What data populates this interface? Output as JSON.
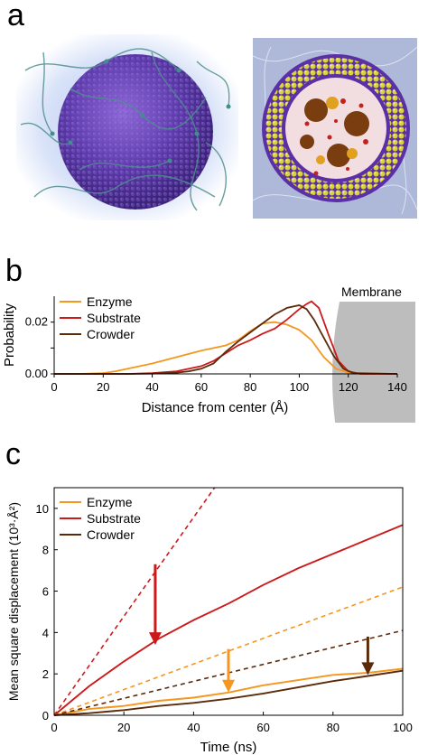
{
  "panels": {
    "a": {
      "letter": "a"
    },
    "b": {
      "letter": "b"
    },
    "c": {
      "letter": "c"
    }
  },
  "colors": {
    "enzyme": "#f5961e",
    "substrate": "#cc1a1a",
    "crowder": "#5a2a0a",
    "membrane": "#bdbdbd"
  },
  "chart_data": [
    {
      "id": "b",
      "type": "line",
      "xlabel": "Distance from center (Å)",
      "ylabel": "Probability",
      "xlim": [
        0,
        140
      ],
      "ylim": [
        0,
        0.03
      ],
      "xticks": [
        0,
        20,
        40,
        60,
        80,
        100,
        120,
        140
      ],
      "yticks": [
        0.0,
        0.01,
        0.02
      ],
      "ytick_labels": [
        "0.00",
        "",
        "0.02"
      ],
      "annotation": "Membrane",
      "legend": [
        "Enzyme",
        "Substrate",
        "Crowder"
      ],
      "legend_position": "top-left",
      "series": [
        {
          "name": "Enzyme",
          "color": "#f5961e",
          "x": [
            0,
            10,
            20,
            25,
            30,
            40,
            50,
            60,
            70,
            75,
            80,
            85,
            90,
            95,
            100,
            105,
            110,
            115,
            120,
            125,
            130,
            140
          ],
          "y": [
            0,
            0,
            0.0003,
            0.001,
            0.002,
            0.004,
            0.0065,
            0.009,
            0.011,
            0.013,
            0.0165,
            0.0195,
            0.02,
            0.019,
            0.017,
            0.013,
            0.0065,
            0.002,
            0.0005,
            0,
            0,
            0
          ]
        },
        {
          "name": "Substrate",
          "color": "#cc1a1a",
          "x": [
            0,
            20,
            30,
            40,
            50,
            60,
            65,
            70,
            75,
            80,
            85,
            90,
            95,
            100,
            103,
            105,
            108,
            112,
            116,
            120,
            125,
            140
          ],
          "y": [
            0,
            0,
            0,
            0.0003,
            0.001,
            0.003,
            0.005,
            0.008,
            0.011,
            0.013,
            0.0155,
            0.0175,
            0.021,
            0.025,
            0.027,
            0.028,
            0.0255,
            0.015,
            0.005,
            0.001,
            0,
            0
          ]
        },
        {
          "name": "Crowder",
          "color": "#5a2a0a",
          "x": [
            0,
            30,
            40,
            50,
            55,
            60,
            65,
            70,
            75,
            80,
            85,
            90,
            95,
            100,
            103,
            106,
            110,
            114,
            118,
            122,
            140
          ],
          "y": [
            0,
            0,
            0.0001,
            0.0005,
            0.001,
            0.002,
            0.004,
            0.0085,
            0.0125,
            0.016,
            0.0195,
            0.023,
            0.0255,
            0.0265,
            0.025,
            0.021,
            0.014,
            0.007,
            0.002,
            0.0003,
            0
          ]
        }
      ]
    },
    {
      "id": "c",
      "type": "line",
      "xlabel": "Time (ns)",
      "ylabel": "Mean square displacement (10³·Å²)",
      "xlim": [
        0,
        100
      ],
      "ylim": [
        0,
        11
      ],
      "xticks": [
        0,
        20,
        40,
        60,
        80,
        100
      ],
      "yticks": [
        0,
        2,
        4,
        6,
        8,
        10
      ],
      "legend": [
        "Enzyme",
        "Substrate",
        "Crowder"
      ],
      "legend_position": "top-left",
      "series": [
        {
          "name": "Enzyme",
          "color": "#f5961e",
          "dashed": false,
          "x": [
            0,
            5,
            10,
            20,
            30,
            40,
            50,
            60,
            70,
            80,
            90,
            100
          ],
          "y": [
            0,
            0.15,
            0.3,
            0.45,
            0.7,
            0.85,
            1.1,
            1.45,
            1.7,
            1.95,
            2.05,
            2.25
          ]
        },
        {
          "name": "Substrate",
          "color": "#cc1a1a",
          "dashed": false,
          "x": [
            0,
            10,
            20,
            30,
            40,
            50,
            60,
            70,
            80,
            90,
            100
          ],
          "y": [
            0,
            1.4,
            2.6,
            3.7,
            4.6,
            5.4,
            6.3,
            7.1,
            7.8,
            8.5,
            9.2
          ]
        },
        {
          "name": "Crowder",
          "color": "#5a2a0a",
          "dashed": false,
          "x": [
            0,
            10,
            20,
            30,
            40,
            50,
            60,
            70,
            80,
            90,
            100
          ],
          "y": [
            0,
            0.1,
            0.25,
            0.45,
            0.6,
            0.8,
            1.05,
            1.35,
            1.65,
            1.9,
            2.15
          ]
        },
        {
          "color": "#cc1a1a",
          "dashed": true,
          "x": [
            0,
            46
          ],
          "y": [
            0,
            11
          ]
        },
        {
          "color": "#f5961e",
          "dashed": true,
          "x": [
            0,
            100
          ],
          "y": [
            0,
            6.2
          ]
        },
        {
          "color": "#5a2a0a",
          "dashed": true,
          "x": [
            0,
            100
          ],
          "y": [
            0,
            4.1
          ]
        }
      ],
      "arrows": [
        {
          "color": "#cc1a1a",
          "x": 29,
          "y_from": 7.3,
          "y_to": 3.4
        },
        {
          "color": "#f5961e",
          "x": 50,
          "y_from": 3.2,
          "y_to": 1.1
        },
        {
          "color": "#5a2a0a",
          "x": 90,
          "y_from": 3.8,
          "y_to": 1.95
        }
      ]
    }
  ]
}
